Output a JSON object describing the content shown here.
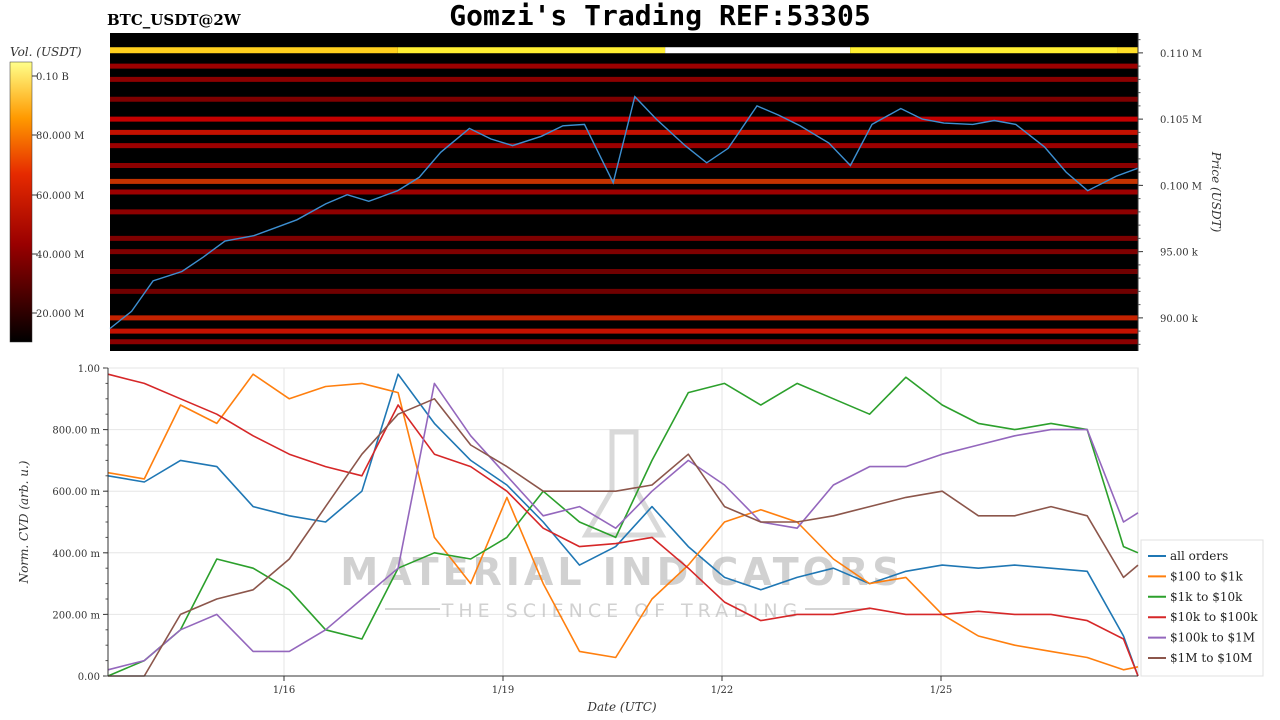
{
  "header": {
    "title": "Gomzi's Trading REF:53305",
    "pair": "BTC_USDT@2W"
  },
  "heatmap_panel": {
    "colorbar_label": "Vol. (USDT)",
    "colorbar_ticks": [
      "0.10 B",
      "80.000 M",
      "60.000 M",
      "40.000 M",
      "20.000 M"
    ],
    "price_axis_label": "Price (USDT)",
    "price_ticks": [
      "0.110 M",
      "0.105 M",
      "0.100 M",
      "95.00 k",
      "90.00 k"
    ]
  },
  "cvd_panel": {
    "y_axis_label": "Norm. CVD (arb. u.)",
    "x_axis_label": "Date (UTC)",
    "y_ticks": [
      "1.00",
      "800.00 m",
      "600.00 m",
      "400.00 m",
      "200.00 m",
      "0.00"
    ],
    "x_ticks": [
      "1/16",
      "1/19",
      "1/22",
      "1/25"
    ]
  },
  "watermark": {
    "line1": "MATERIAL INDICATORS",
    "line2": "THE SCIENCE OF TRADING"
  },
  "colors": {
    "price_line": "#3d8fd1",
    "heat_low": "#000000",
    "heat_mid": "#b40000",
    "heat_high": "#ffff60"
  },
  "chart_data": [
    {
      "type": "heatmap",
      "title": "BTC_USDT@2W",
      "ylabel": "Price (USDT)",
      "ylim": [
        87500,
        111500
      ],
      "colorbar": {
        "label": "Vol. (USDT)",
        "range": [
          0,
          110000000
        ]
      },
      "price_series": {
        "name": "price",
        "x": [
          0,
          0.3,
          0.6,
          1,
          1.3,
          1.6,
          2,
          2.3,
          2.6,
          3,
          3.3,
          3.6,
          4,
          4.3,
          4.6,
          5,
          5.3,
          5.6,
          6,
          6.3,
          6.6,
          7,
          7.3,
          7.6,
          8,
          8.3,
          8.6,
          9,
          9.3,
          9.6,
          10,
          10.3,
          10.6,
          11,
          11.3,
          11.6,
          12,
          12.3,
          12.6,
          13,
          13.3,
          13.6,
          14,
          14.3
        ],
        "y": [
          89200,
          90500,
          92800,
          93500,
          94600,
          95800,
          96200,
          96800,
          97400,
          98600,
          99300,
          98800,
          99600,
          100600,
          102500,
          104300,
          103500,
          103000,
          103700,
          104500,
          104600,
          100200,
          106700,
          105000,
          103000,
          101700,
          102800,
          106000,
          105300,
          104500,
          103200,
          101500,
          104600,
          105800,
          105000,
          104700,
          104600,
          104900,
          104600,
          102900,
          101000,
          99600,
          100700,
          101300
        ]
      },
      "bands": [
        {
          "price": 110200,
          "level": 0.9
        },
        {
          "price": 109000,
          "level": 0.35
        },
        {
          "price": 108000,
          "level": 0.3
        },
        {
          "price": 106500,
          "level": 0.25
        },
        {
          "price": 105000,
          "level": 0.4
        },
        {
          "price": 104000,
          "level": 0.45
        },
        {
          "price": 103000,
          "level": 0.35
        },
        {
          "price": 101500,
          "level": 0.3
        },
        {
          "price": 100300,
          "level": 0.55
        },
        {
          "price": 99500,
          "level": 0.35
        },
        {
          "price": 98000,
          "level": 0.3
        },
        {
          "price": 96000,
          "level": 0.25
        },
        {
          "price": 95000,
          "level": 0.25
        },
        {
          "price": 93500,
          "level": 0.2
        },
        {
          "price": 92000,
          "level": 0.2
        },
        {
          "price": 90000,
          "level": 0.5
        },
        {
          "price": 89000,
          "level": 0.45
        },
        {
          "price": 88200,
          "level": 0.3
        }
      ]
    },
    {
      "type": "line",
      "xlabel": "Date (UTC)",
      "ylabel": "Norm. CVD (arb. u.)",
      "ylim": [
        0,
        1
      ],
      "x": [
        0,
        0.5,
        1,
        1.5,
        2,
        2.5,
        3,
        3.5,
        4,
        4.5,
        5,
        5.5,
        6,
        6.5,
        7,
        7.5,
        8,
        8.5,
        9,
        9.5,
        10,
        10.5,
        11,
        11.5,
        12,
        12.5,
        13,
        13.5,
        14,
        14.2
      ],
      "series": [
        {
          "name": "all orders",
          "color": "#1f77b4",
          "values": [
            0.65,
            0.63,
            0.7,
            0.68,
            0.55,
            0.52,
            0.5,
            0.6,
            0.98,
            0.82,
            0.7,
            0.62,
            0.5,
            0.36,
            0.42,
            0.55,
            0.42,
            0.32,
            0.28,
            0.32,
            0.35,
            0.3,
            0.34,
            0.36,
            0.35,
            0.36,
            0.35,
            0.34,
            0.13,
            0.0
          ]
        },
        {
          "name": "$100 to $1k",
          "color": "#ff7f0e",
          "values": [
            0.66,
            0.64,
            0.88,
            0.82,
            0.98,
            0.9,
            0.94,
            0.95,
            0.92,
            0.45,
            0.3,
            0.58,
            0.3,
            0.08,
            0.06,
            0.25,
            0.36,
            0.5,
            0.54,
            0.5,
            0.38,
            0.3,
            0.32,
            0.2,
            0.13,
            0.1,
            0.08,
            0.06,
            0.02,
            0.03
          ]
        },
        {
          "name": "$1k to $10k",
          "color": "#2ca02c",
          "values": [
            0.0,
            0.05,
            0.15,
            0.38,
            0.35,
            0.28,
            0.15,
            0.12,
            0.35,
            0.4,
            0.38,
            0.45,
            0.6,
            0.5,
            0.45,
            0.7,
            0.92,
            0.95,
            0.88,
            0.95,
            0.9,
            0.85,
            0.97,
            0.88,
            0.82,
            0.8,
            0.82,
            0.8,
            0.42,
            0.4
          ]
        },
        {
          "name": "$10k to $100k",
          "color": "#d62728",
          "values": [
            0.98,
            0.95,
            0.9,
            0.85,
            0.78,
            0.72,
            0.68,
            0.65,
            0.88,
            0.72,
            0.68,
            0.6,
            0.48,
            0.42,
            0.43,
            0.45,
            0.35,
            0.24,
            0.18,
            0.2,
            0.2,
            0.22,
            0.2,
            0.2,
            0.21,
            0.2,
            0.2,
            0.18,
            0.12,
            0.0
          ]
        },
        {
          "name": "$100k to $1M",
          "color": "#9467bd",
          "values": [
            0.02,
            0.05,
            0.15,
            0.2,
            0.08,
            0.08,
            0.15,
            0.25,
            0.35,
            0.95,
            0.78,
            0.65,
            0.52,
            0.55,
            0.48,
            0.6,
            0.7,
            0.62,
            0.5,
            0.48,
            0.62,
            0.68,
            0.68,
            0.72,
            0.75,
            0.78,
            0.8,
            0.8,
            0.5,
            0.53
          ]
        },
        {
          "name": "$1M to $10M",
          "color": "#8c564b",
          "values": [
            0.0,
            0.0,
            0.2,
            0.25,
            0.28,
            0.38,
            0.55,
            0.72,
            0.85,
            0.9,
            0.75,
            0.68,
            0.6,
            0.6,
            0.6,
            0.62,
            0.72,
            0.55,
            0.5,
            0.5,
            0.52,
            0.55,
            0.58,
            0.6,
            0.52,
            0.52,
            0.55,
            0.52,
            0.32,
            0.36
          ]
        }
      ]
    }
  ]
}
